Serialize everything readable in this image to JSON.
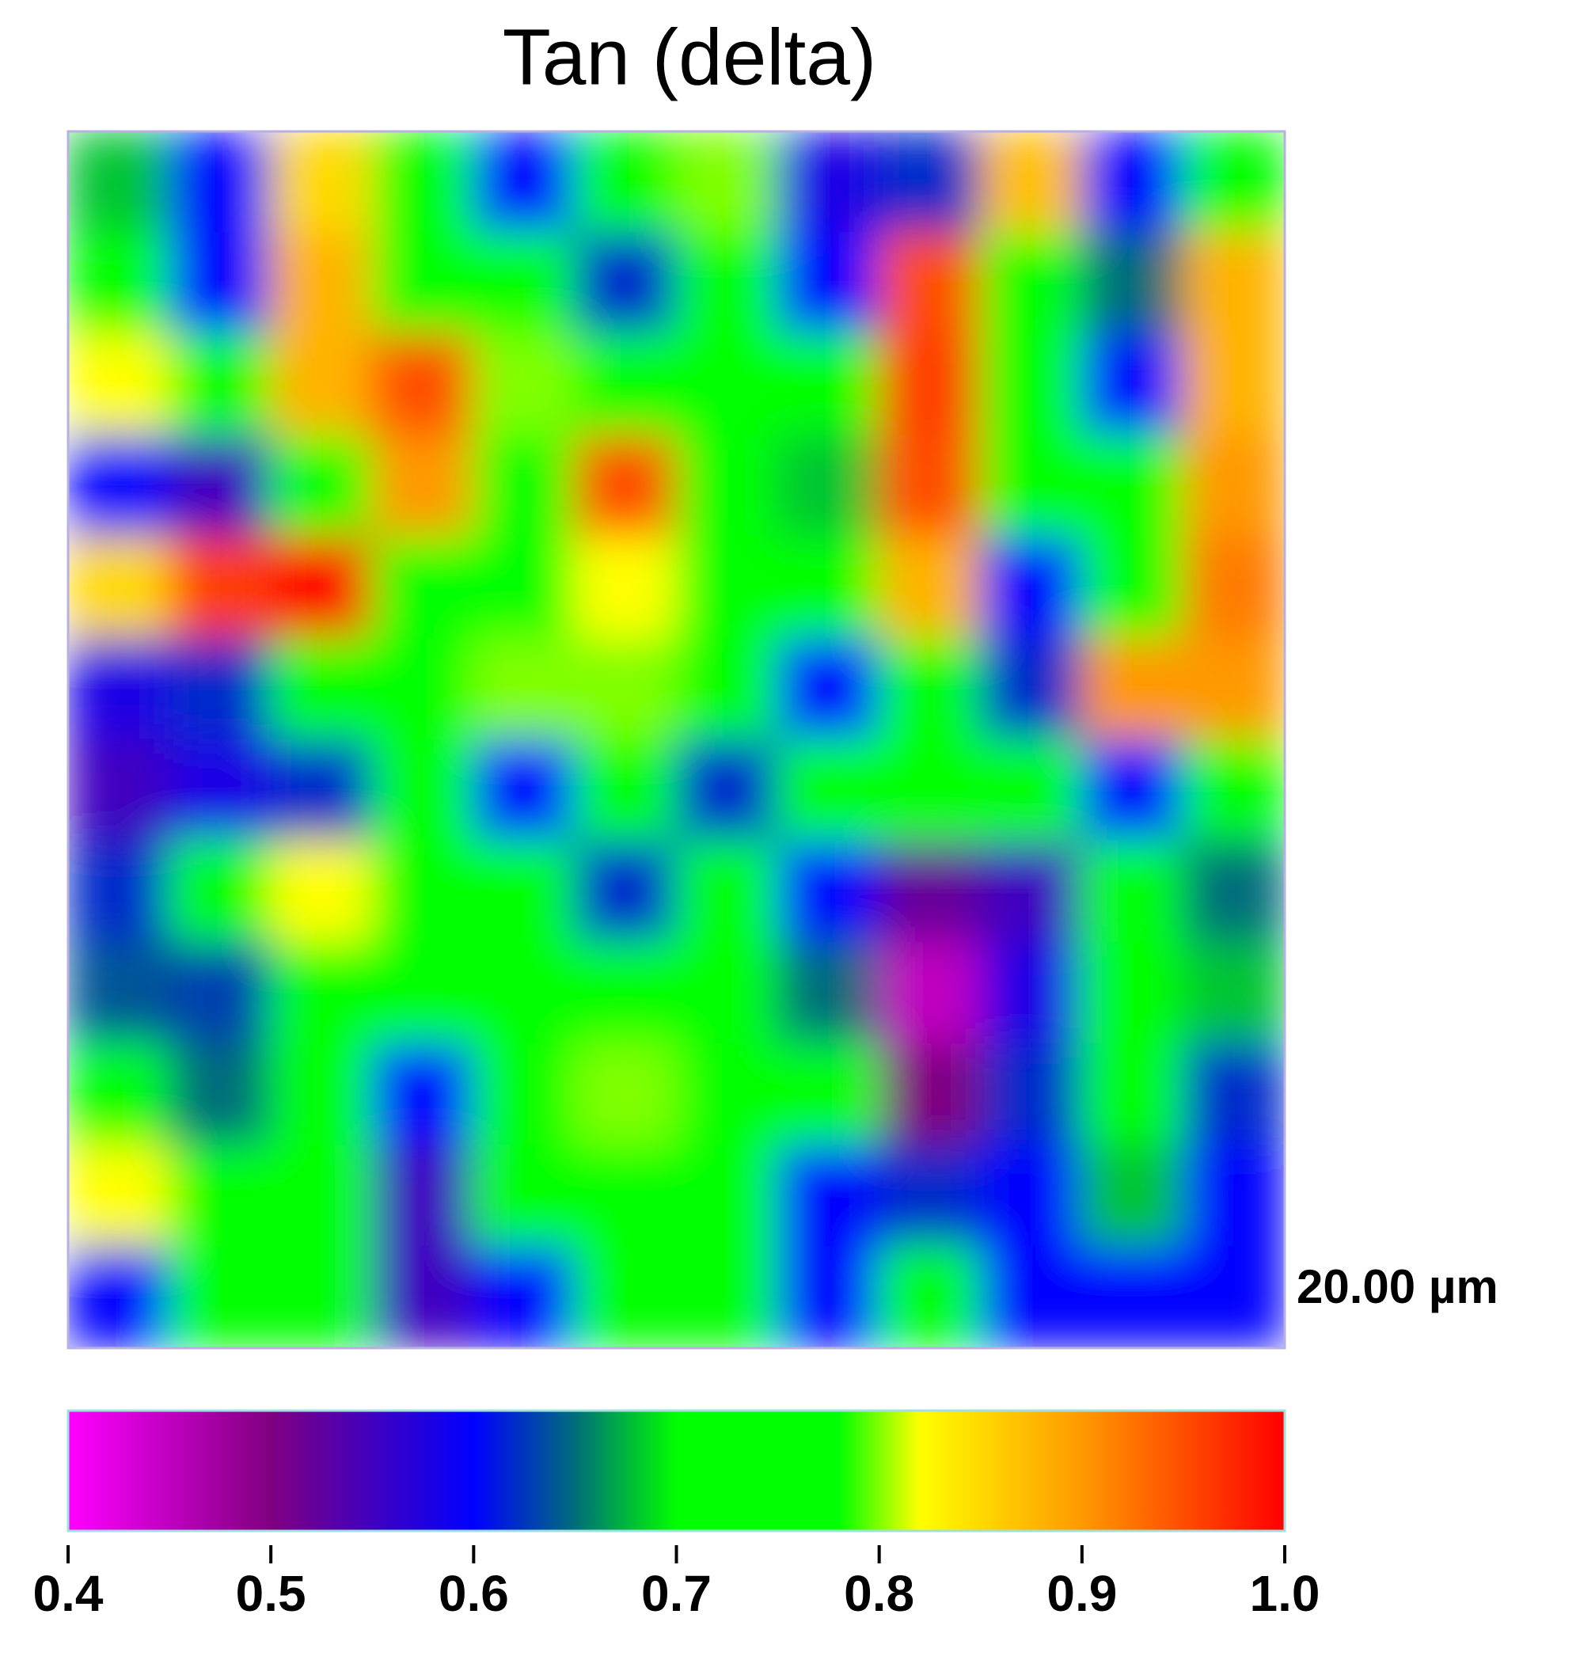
{
  "chart_data": {
    "type": "heatmap",
    "title": "Tan (delta)",
    "scale_label": "20.00 µm",
    "z": [
      [
        0.68,
        0.6,
        0.85,
        0.7,
        0.6,
        0.72,
        0.8,
        0.58,
        0.62,
        0.87,
        0.6,
        0.7
      ],
      [
        0.72,
        0.6,
        0.88,
        0.75,
        0.7,
        0.62,
        0.75,
        0.6,
        0.95,
        0.7,
        0.65,
        0.88
      ],
      [
        0.82,
        0.7,
        0.88,
        0.95,
        0.8,
        0.75,
        0.78,
        0.7,
        0.96,
        0.72,
        0.6,
        0.88
      ],
      [
        0.6,
        0.55,
        0.75,
        0.9,
        0.72,
        0.95,
        0.72,
        0.68,
        0.95,
        0.72,
        0.7,
        0.9
      ],
      [
        0.85,
        0.96,
        1.0,
        0.72,
        0.7,
        0.82,
        0.75,
        0.72,
        0.88,
        0.6,
        0.75,
        0.92
      ],
      [
        0.58,
        0.62,
        0.72,
        0.72,
        0.8,
        0.8,
        0.7,
        0.6,
        0.72,
        0.62,
        0.9,
        0.9
      ],
      [
        0.55,
        0.58,
        0.62,
        0.7,
        0.6,
        0.72,
        0.62,
        0.72,
        0.7,
        0.7,
        0.6,
        0.72
      ],
      [
        0.62,
        0.7,
        0.82,
        0.75,
        0.72,
        0.62,
        0.7,
        0.6,
        0.52,
        0.55,
        0.7,
        0.65
      ],
      [
        0.64,
        0.63,
        0.78,
        0.76,
        0.7,
        0.78,
        0.72,
        0.65,
        0.45,
        0.58,
        0.72,
        0.68
      ],
      [
        0.7,
        0.65,
        0.72,
        0.6,
        0.72,
        0.8,
        0.72,
        0.7,
        0.5,
        0.62,
        0.7,
        0.62
      ],
      [
        0.82,
        0.78,
        0.72,
        0.55,
        0.72,
        0.78,
        0.74,
        0.6,
        0.62,
        0.6,
        0.68,
        0.6
      ],
      [
        0.6,
        0.75,
        0.7,
        0.55,
        0.6,
        0.72,
        0.7,
        0.6,
        0.7,
        0.6,
        0.6,
        0.6
      ]
    ],
    "colorlim": [
      0.4,
      1.0
    ],
    "colorscale": [
      [
        0.4,
        "#ff00ff"
      ],
      [
        0.5,
        "#800080"
      ],
      [
        0.6,
        "#0000ff"
      ],
      [
        0.65,
        "#006d7a"
      ],
      [
        0.7,
        "#00ff00"
      ],
      [
        0.78,
        "#00ff00"
      ],
      [
        0.82,
        "#ffff00"
      ],
      [
        0.9,
        "#ff9900"
      ],
      [
        1.0,
        "#ff0000"
      ]
    ],
    "cticks": [
      0.4,
      0.5,
      0.6,
      0.7,
      0.8,
      0.9,
      {
        "value": 1,
        "label": "1.0"
      }
    ]
  }
}
